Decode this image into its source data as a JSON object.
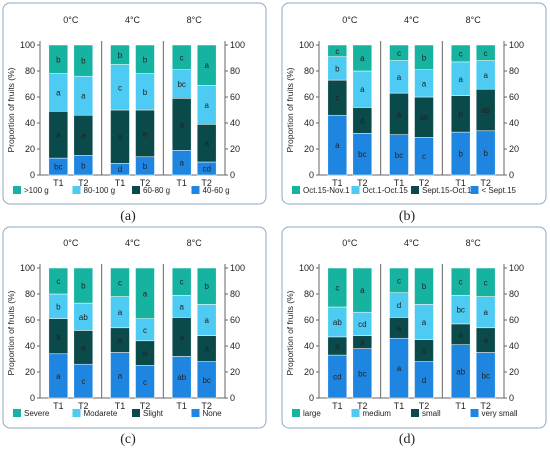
{
  "colors": {
    "top": "#17b3a1",
    "upper": "#4dcbf2",
    "mid": "#0a4a4a",
    "bottom": "#1e86e0",
    "frame": "#8ea8c4",
    "axis": "#666666"
  },
  "chart_data": [
    {
      "type": "bar",
      "stacked": true,
      "panel_label": "(a)",
      "groups": [
        "0°C",
        "4°C",
        "8°C"
      ],
      "categories": [
        "T1",
        "T2"
      ],
      "ylabel": "Proportion of fruits (%)",
      "ylim": [
        0,
        100
      ],
      "yticks": [
        0,
        20,
        40,
        60,
        80,
        100
      ],
      "legend": [
        "40-60 g",
        "60-80 g",
        "80-100 g",
        ">100 g"
      ],
      "legend_display": [
        ">100 g",
        "80-100 g",
        "60-80 g",
        "40-60 g"
      ],
      "bars": [
        {
          "group": "0°C",
          "category": "T1",
          "values": [
            13,
            36,
            29,
            22
          ],
          "letters": [
            "bc",
            "a",
            "a",
            "b"
          ]
        },
        {
          "group": "0°C",
          "category": "T2",
          "values": [
            15,
            31,
            30,
            24
          ],
          "letters": [
            "b",
            "a",
            "a",
            "b"
          ]
        },
        {
          "group": "4°C",
          "category": "T1",
          "values": [
            9,
            41,
            35,
            15
          ],
          "letters": [
            "d",
            "a",
            "c",
            "b"
          ]
        },
        {
          "group": "4°C",
          "category": "T2",
          "values": [
            14,
            36,
            28,
            22
          ],
          "letters": [
            "b",
            "a",
            "b",
            "b"
          ]
        },
        {
          "group": "8°C",
          "category": "T1",
          "values": [
            19,
            40,
            22,
            19
          ],
          "letters": [
            "a",
            "a",
            "bc",
            "c"
          ]
        },
        {
          "group": "8°C",
          "category": "T2",
          "values": [
            10,
            29,
            30,
            31
          ],
          "letters": [
            "cd",
            "a",
            "a",
            "a"
          ]
        }
      ]
    },
    {
      "type": "bar",
      "stacked": true,
      "panel_label": "(b)",
      "groups": [
        "0°C",
        "4°C",
        "8°C"
      ],
      "categories": [
        "T1",
        "T2"
      ],
      "ylabel": "Proportion of fruits (%)",
      "ylim": [
        0,
        100
      ],
      "yticks": [
        0,
        20,
        40,
        60,
        80,
        100
      ],
      "legend": [
        "< Sept.15",
        "Sept.15-Oct.1",
        "Oct.1-Oct.15",
        "Oct.15-Nov.1"
      ],
      "legend_display": [
        "Oct.15-Nov.1",
        "Oct.1-Oct.15",
        "Sept.15-Oct.1",
        "< Sept.15"
      ],
      "bars": [
        {
          "group": "0°C",
          "category": "T1",
          "values": [
            46,
            27,
            18,
            9
          ],
          "letters": [
            "a",
            "c",
            "b",
            "c"
          ]
        },
        {
          "group": "0°C",
          "category": "T2",
          "values": [
            32,
            20,
            28,
            20
          ],
          "letters": [
            "bc",
            "d",
            "a",
            "a"
          ]
        },
        {
          "group": "4°C",
          "category": "T1",
          "values": [
            31,
            32,
            25,
            12
          ],
          "letters": [
            "bc",
            "a",
            "a",
            "c"
          ]
        },
        {
          "group": "4°C",
          "category": "T2",
          "values": [
            29,
            31,
            21,
            19
          ],
          "letters": [
            "c",
            "ab",
            "a",
            "b"
          ]
        },
        {
          "group": "8°C",
          "category": "T1",
          "values": [
            33,
            28,
            26,
            13
          ],
          "letters": [
            "b",
            "b",
            "a",
            "c"
          ]
        },
        {
          "group": "8°C",
          "category": "T2",
          "values": [
            34,
            32,
            22,
            12
          ],
          "letters": [
            "b",
            "ab",
            "a",
            "c"
          ]
        }
      ]
    },
    {
      "type": "bar",
      "stacked": true,
      "panel_label": "(c)",
      "groups": [
        "0°C",
        "4°C",
        "8°C"
      ],
      "categories": [
        "T1",
        "T2"
      ],
      "ylabel": "Proportion of fruits (%)",
      "ylim": [
        0,
        100
      ],
      "yticks": [
        0,
        20,
        40,
        60,
        80,
        100
      ],
      "legend": [
        "None",
        "Slight",
        "Modarete",
        "Severe"
      ],
      "legend_display": [
        "Severe",
        "Modarete",
        "Slight",
        "None"
      ],
      "bars": [
        {
          "group": "0°C",
          "category": "T1",
          "values": [
            34,
            27,
            19,
            20
          ],
          "letters": [
            "a",
            "a",
            "b",
            "c"
          ]
        },
        {
          "group": "0°C",
          "category": "T2",
          "values": [
            26,
            26,
            21,
            27
          ],
          "letters": [
            "c",
            "a",
            "ab",
            "b"
          ]
        },
        {
          "group": "4°C",
          "category": "T1",
          "values": [
            35,
            19,
            24,
            22
          ],
          "letters": [
            "a",
            "a",
            "a",
            "c"
          ]
        },
        {
          "group": "4°C",
          "category": "T2",
          "values": [
            25,
            19,
            17,
            39
          ],
          "letters": [
            "c",
            "a",
            "c",
            "a"
          ]
        },
        {
          "group": "8°C",
          "category": "T1",
          "values": [
            32,
            30,
            17,
            21
          ],
          "letters": [
            "ab",
            "a",
            "a",
            "c"
          ]
        },
        {
          "group": "8°C",
          "category": "T2",
          "values": [
            28,
            20,
            24,
            28
          ],
          "letters": [
            "bc",
            "a",
            "a",
            "b"
          ]
        }
      ]
    },
    {
      "type": "bar",
      "stacked": true,
      "panel_label": "(d)",
      "groups": [
        "0°C",
        "4°C",
        "8°C"
      ],
      "categories": [
        "T1",
        "T2"
      ],
      "ylabel": "Proportion of fruits (%)",
      "ylim": [
        0,
        100
      ],
      "yticks": [
        0,
        20,
        40,
        60,
        80,
        100
      ],
      "legend": [
        "very small",
        "small",
        "medium",
        "large"
      ],
      "legend_display": [
        "large",
        "medium",
        "small",
        "very small"
      ],
      "bars": [
        {
          "group": "0°C",
          "category": "T1",
          "values": [
            33,
            14,
            23,
            30
          ],
          "letters": [
            "cd",
            "a",
            "ab",
            "c"
          ]
        },
        {
          "group": "0°C",
          "category": "T2",
          "values": [
            38,
            10,
            18,
            34
          ],
          "letters": [
            "bc",
            "a",
            "cd",
            "a"
          ]
        },
        {
          "group": "4°C",
          "category": "T1",
          "values": [
            46,
            16,
            19,
            19
          ],
          "letters": [
            "a",
            "a",
            "d",
            "c"
          ]
        },
        {
          "group": "4°C",
          "category": "T2",
          "values": [
            28,
            17,
            27,
            28
          ],
          "letters": [
            "d",
            "a",
            "a",
            "b"
          ]
        },
        {
          "group": "8°C",
          "category": "T1",
          "values": [
            41,
            16,
            22,
            21
          ],
          "letters": [
            "ab",
            "a",
            "bc",
            "c"
          ]
        },
        {
          "group": "8°C",
          "category": "T2",
          "values": [
            35,
            19,
            24,
            22
          ],
          "letters": [
            "bc",
            "a",
            "a",
            "c"
          ]
        }
      ]
    }
  ]
}
